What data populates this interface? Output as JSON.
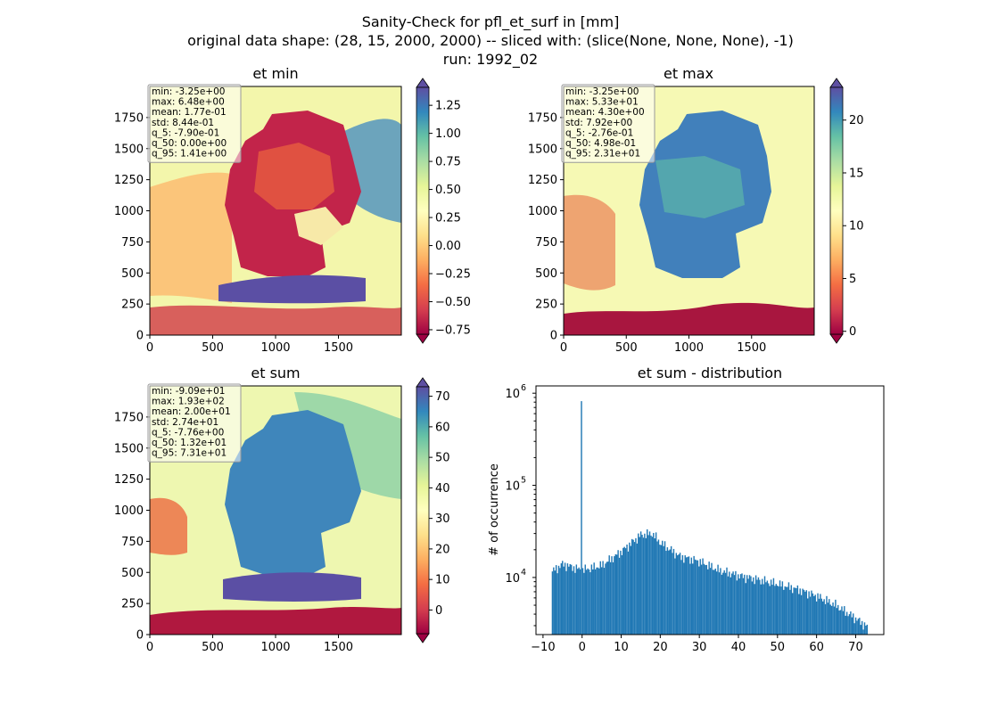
{
  "figure": {
    "suptitle_lines": [
      "Sanity-Check for pfl_et_surf in [mm]",
      "original data shape: (28, 15, 2000, 2000) -- sliced with: (slice(None, None, None), -1)",
      "run: 1992_02"
    ]
  },
  "chart_data": [
    {
      "type": "heatmap",
      "title": "et min",
      "xlim": [
        0,
        2000
      ],
      "ylim": [
        0,
        2000
      ],
      "xticks": [
        0,
        500,
        1000,
        1500
      ],
      "yticks": [
        0,
        250,
        500,
        750,
        1000,
        1250,
        1500,
        1750
      ],
      "colormap": "Spectral",
      "colorbar": {
        "vmin": -0.79,
        "vmax": 1.41,
        "ticks": [
          -0.75,
          -0.5,
          -0.25,
          0.0,
          0.25,
          0.5,
          0.75,
          1.0,
          1.25
        ],
        "tick_labels": [
          "−0.75",
          "−0.50",
          "−0.25",
          "0.00",
          "0.25",
          "0.50",
          "0.75",
          "1.00",
          "1.25"
        ],
        "extend": "both"
      },
      "stats": [
        "min: -3.25e+00",
        "max: 6.48e+00",
        "mean: 1.77e-01",
        "std: 8.44e-01",
        "q_5: -7.90e-01",
        "q_50: 0.00e+00",
        "q_95: 1.41e+00"
      ]
    },
    {
      "type": "heatmap",
      "title": "et max",
      "xlim": [
        0,
        2000
      ],
      "ylim": [
        0,
        2000
      ],
      "xticks": [
        0,
        500,
        1000,
        1500
      ],
      "yticks": [
        0,
        250,
        500,
        750,
        1000,
        1250,
        1500,
        1750
      ],
      "colormap": "Spectral",
      "colorbar": {
        "vmin": -0.276,
        "vmax": 23.1,
        "ticks": [
          0,
          5,
          10,
          15,
          20
        ],
        "tick_labels": [
          "0",
          "5",
          "10",
          "15",
          "20"
        ],
        "extend": "both"
      },
      "stats": [
        "min: -3.25e+00",
        "max: 5.33e+01",
        "mean: 4.30e+00",
        "std: 7.92e+00",
        "q_5: -2.76e-01",
        "q_50: 4.98e-01",
        "q_95: 2.31e+01"
      ]
    },
    {
      "type": "heatmap",
      "title": "et sum",
      "xlim": [
        0,
        2000
      ],
      "ylim": [
        0,
        2000
      ],
      "xticks": [
        0,
        500,
        1000,
        1500
      ],
      "yticks": [
        0,
        250,
        500,
        750,
        1000,
        1250,
        1500,
        1750
      ],
      "colormap": "Spectral",
      "colorbar": {
        "vmin": -7.76,
        "vmax": 73.1,
        "ticks": [
          0,
          10,
          20,
          30,
          40,
          50,
          60,
          70
        ],
        "tick_labels": [
          "0",
          "10",
          "20",
          "30",
          "40",
          "50",
          "60",
          "70"
        ],
        "extend": "both"
      },
      "stats": [
        "min: -9.09e+01",
        "max: 1.93e+02",
        "mean: 2.00e+01",
        "std: 2.74e+01",
        "q_5: -7.76e+00",
        "q_50: 1.32e+01",
        "q_95: 7.31e+01"
      ]
    },
    {
      "type": "bar",
      "subtype": "histogram",
      "title": "et sum - distribution",
      "ylabel": "# of occurrence",
      "yscale": "log",
      "xlim": [
        -11.8,
        77.2
      ],
      "ylim": [
        2400,
        1200000
      ],
      "xticks": [
        -10,
        0,
        10,
        20,
        30,
        40,
        50,
        60,
        70
      ],
      "xtick_labels": [
        "−10",
        "0",
        "10",
        "20",
        "30",
        "40",
        "50",
        "60",
        "70"
      ],
      "yticks": [
        10000,
        100000,
        1000000
      ],
      "ytick_labels": [
        [
          "10",
          "4"
        ],
        [
          "10",
          "5"
        ],
        [
          "10",
          "6"
        ]
      ],
      "color": "#1f77b4",
      "bins_range": [
        -7.76,
        73.1
      ],
      "bin_count": 250,
      "spike": {
        "x": 0.0,
        "count": 820000
      },
      "envelope": [
        {
          "x": -7.76,
          "count": 11500
        },
        {
          "x": -5,
          "count": 14000
        },
        {
          "x": 0,
          "count": 12000
        },
        {
          "x": 5,
          "count": 13500
        },
        {
          "x": 10,
          "count": 19000
        },
        {
          "x": 15,
          "count": 29000
        },
        {
          "x": 18,
          "count": 30000
        },
        {
          "x": 20,
          "count": 24000
        },
        {
          "x": 25,
          "count": 17000
        },
        {
          "x": 30,
          "count": 15000
        },
        {
          "x": 35,
          "count": 12000
        },
        {
          "x": 40,
          "count": 10500
        },
        {
          "x": 45,
          "count": 9500
        },
        {
          "x": 50,
          "count": 8500
        },
        {
          "x": 55,
          "count": 7500
        },
        {
          "x": 60,
          "count": 6300
        },
        {
          "x": 65,
          "count": 5000
        },
        {
          "x": 70,
          "count": 3600
        },
        {
          "x": 73.1,
          "count": 2900
        }
      ]
    }
  ]
}
